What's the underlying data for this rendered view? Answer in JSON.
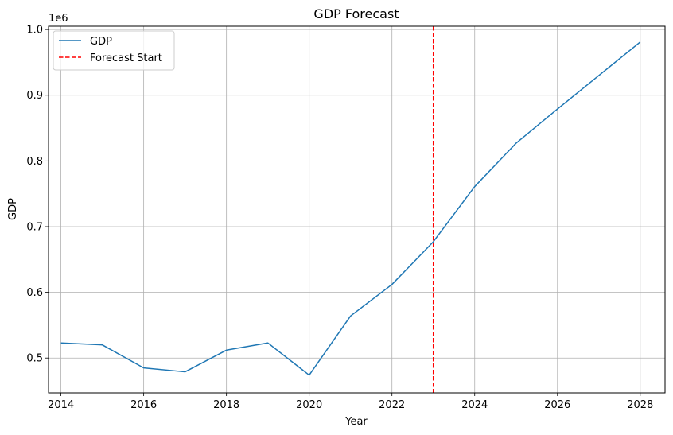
{
  "chart_data": {
    "type": "line",
    "title": "GDP Forecast",
    "xlabel": "Year",
    "ylabel": "GDP",
    "y_offset_text": "1e6",
    "xlim": [
      2013.7,
      2028.6
    ],
    "ylim": [
      0.447,
      1.005
    ],
    "x_ticks": [
      2014,
      2016,
      2018,
      2020,
      2022,
      2024,
      2026,
      2028
    ],
    "y_ticks": [
      0.5,
      0.6,
      0.7,
      0.8,
      0.9,
      1.0
    ],
    "x_tick_labels": [
      "2014",
      "2016",
      "2018",
      "2020",
      "2022",
      "2024",
      "2026",
      "2028"
    ],
    "y_tick_labels": [
      "0.5",
      "0.6",
      "0.7",
      "0.8",
      "0.9",
      "1.0"
    ],
    "grid": true,
    "legend_position": "top-left",
    "series": [
      {
        "name": "GDP",
        "color": "#1f77b4",
        "x": [
          2014,
          2015,
          2016,
          2017,
          2018,
          2019,
          2020,
          2021,
          2022,
          2023,
          2024,
          2025,
          2026,
          2027,
          2028
        ],
        "y": [
          0.523,
          0.52,
          0.485,
          0.479,
          0.512,
          0.523,
          0.474,
          0.564,
          0.612,
          0.677,
          0.761,
          0.827,
          0.879,
          0.93,
          0.981
        ]
      }
    ],
    "vlines": [
      {
        "name": "Forecast Start",
        "x": 2023,
        "color": "#ff0000",
        "style": "dashed"
      }
    ]
  }
}
